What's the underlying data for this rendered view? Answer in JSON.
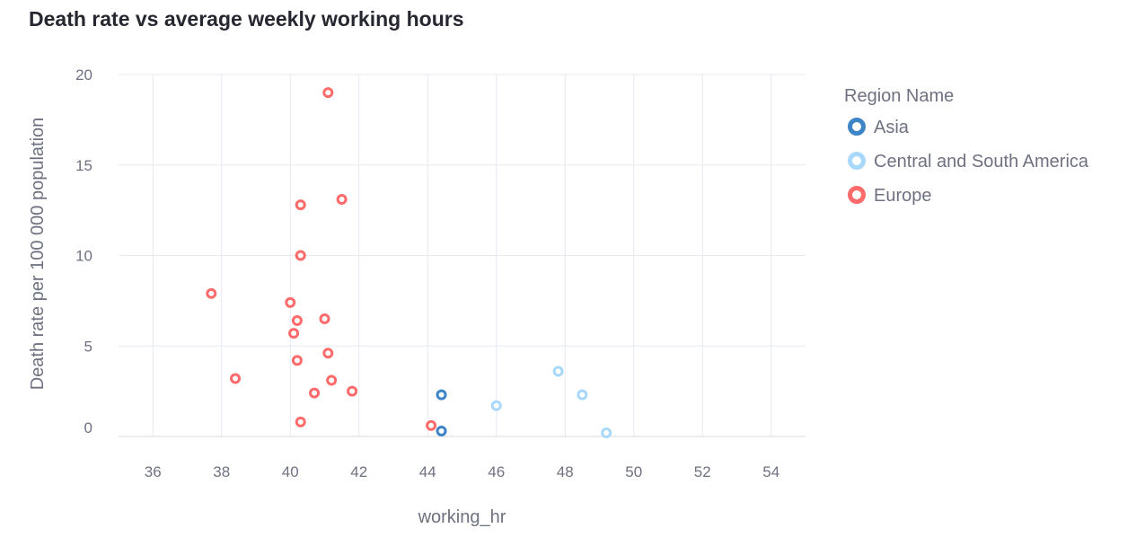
{
  "chart_data": {
    "type": "scatter",
    "title": "Death rate vs average weekly working hours",
    "xlabel": "working_hr",
    "ylabel": "Death rate per 100 000 population",
    "xlim": [
      35,
      55
    ],
    "ylim": [
      0,
      20
    ],
    "xticks": [
      36,
      38,
      40,
      42,
      44,
      46,
      48,
      50,
      52,
      54
    ],
    "yticks": [
      0,
      5,
      10,
      15,
      20
    ],
    "grid": true,
    "legend": {
      "title": "Region Name",
      "placement": "right"
    },
    "series": [
      {
        "name": "Asia",
        "color": "#3d85c6",
        "points": [
          {
            "x": 44.4,
            "y": 2.3
          },
          {
            "x": 44.4,
            "y": 0.3
          }
        ]
      },
      {
        "name": "Central and South America",
        "color": "#a8d8fb",
        "points": [
          {
            "x": 46.0,
            "y": 1.7
          },
          {
            "x": 47.8,
            "y": 3.6
          },
          {
            "x": 48.5,
            "y": 2.3
          },
          {
            "x": 49.2,
            "y": 0.2
          }
        ]
      },
      {
        "name": "Europe",
        "color": "#ff6b6b",
        "points": [
          {
            "x": 41.1,
            "y": 19.0
          },
          {
            "x": 41.5,
            "y": 13.1
          },
          {
            "x": 40.3,
            "y": 12.8
          },
          {
            "x": 40.3,
            "y": 10.0
          },
          {
            "x": 37.7,
            "y": 7.9
          },
          {
            "x": 40.0,
            "y": 7.4
          },
          {
            "x": 40.2,
            "y": 6.4
          },
          {
            "x": 41.0,
            "y": 6.5
          },
          {
            "x": 40.1,
            "y": 5.7
          },
          {
            "x": 41.1,
            "y": 4.6
          },
          {
            "x": 40.2,
            "y": 4.2
          },
          {
            "x": 38.4,
            "y": 3.2
          },
          {
            "x": 41.2,
            "y": 3.1
          },
          {
            "x": 40.7,
            "y": 2.4
          },
          {
            "x": 41.8,
            "y": 2.5
          },
          {
            "x": 40.3,
            "y": 0.8
          },
          {
            "x": 44.1,
            "y": 0.6
          }
        ]
      }
    ]
  }
}
